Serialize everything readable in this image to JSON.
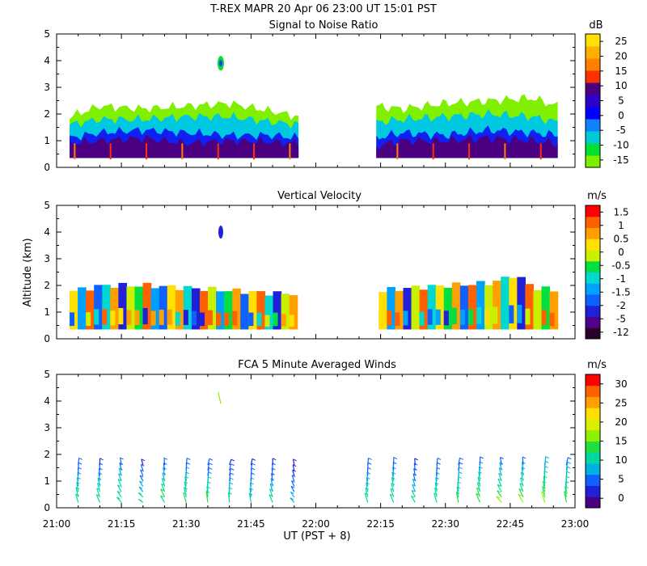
{
  "header": {
    "title": "T-REX   MAPR 20 Apr 06   23:00 UT   15:01   PST"
  },
  "x_axis": {
    "label": "UT  (PST + 8)",
    "tick_labels": [
      "21:00",
      "21:15",
      "21:30",
      "21:45",
      "22:00",
      "22:15",
      "22:30",
      "22:45",
      "23:00"
    ],
    "range_minutes": [
      0,
      120
    ]
  },
  "y_axis": {
    "label": "Altitude (km)",
    "tick_labels": [
      "0",
      "1",
      "2",
      "3",
      "4",
      "5"
    ],
    "range_km": [
      0,
      5
    ]
  },
  "colors": {
    "scale": [
      "#7cf000",
      "#00e030",
      "#00c8d8",
      "#1080ff",
      "#0000ff",
      "#2c00c8",
      "#4a0080",
      "#ff3000",
      "#ff8000",
      "#ffb000",
      "#ffe000"
    ],
    "velocity_scale": [
      "#2a002a",
      "#50008a",
      "#2020d8",
      "#1060ff",
      "#00a0ff",
      "#00d8d0",
      "#00e040",
      "#c8f000",
      "#ffe000",
      "#ffa000",
      "#ff6000",
      "#ff0000"
    ],
    "wind_scale": [
      "#4a0080",
      "#2020d8",
      "#1060ff",
      "#00b0e0",
      "#00d8a0",
      "#20e040",
      "#90f000",
      "#d8f000",
      "#ffe000",
      "#ffa000",
      "#ff6000",
      "#ff0000"
    ]
  },
  "chart_data": [
    {
      "type": "heatmap",
      "title": "Signal to Noise Ratio",
      "unit": "dB",
      "colorbar_ticks": [
        "25",
        "20",
        "15",
        "10",
        "5",
        "0",
        "-5",
        "-10",
        "-15"
      ],
      "data_gap_minutes": [
        56,
        74
      ],
      "layers_top_km": [
        {
          "level": "-15 dB",
          "x": [
            3,
            10,
            20,
            30,
            40,
            50,
            56,
            74,
            80,
            90,
            100,
            110,
            116
          ],
          "top": [
            1.9,
            2.3,
            2.2,
            2.3,
            2.4,
            2.1,
            1.9,
            2.3,
            2.2,
            2.4,
            2.5,
            2.6,
            2.3
          ]
        },
        {
          "level": "-5 dB",
          "x": [
            3,
            10,
            20,
            30,
            40,
            50,
            56,
            74,
            80,
            90,
            100,
            110,
            116
          ],
          "top": [
            1.6,
            1.8,
            1.8,
            1.9,
            1.9,
            1.7,
            1.6,
            1.7,
            1.8,
            1.9,
            2.0,
            1.9,
            1.7
          ]
        },
        {
          "level": "5 dB",
          "x": [
            3,
            10,
            20,
            30,
            40,
            50,
            56,
            74,
            80,
            90,
            100,
            110,
            116
          ],
          "top": [
            1.1,
            1.3,
            1.4,
            1.3,
            1.2,
            1.2,
            1.1,
            1.1,
            1.3,
            1.2,
            1.4,
            1.3,
            1.2
          ]
        },
        {
          "level": "10 dB",
          "x": [
            3,
            10,
            20,
            30,
            40,
            50,
            56,
            74,
            80,
            90,
            100,
            110,
            116
          ],
          "top": [
            0.9,
            1.0,
            1.1,
            0.9,
            1.0,
            0.95,
            0.9,
            0.8,
            1.0,
            1.0,
            1.1,
            1.0,
            0.9
          ]
        }
      ],
      "bottom_km": 0.35,
      "isolated_feature": {
        "x_min": 38,
        "alt_km": 3.9,
        "value_db": 0
      }
    },
    {
      "type": "heatmap",
      "title": "Vertical Velocity",
      "unit": "m/s",
      "colorbar_ticks": [
        "1.5",
        "1",
        "0.5",
        "0",
        "-0.5",
        "-1",
        "-1.5",
        "-2",
        "-5",
        "-12"
      ],
      "data_gap_minutes": [
        56,
        74
      ],
      "echo_top_km": {
        "x": [
          3,
          10,
          20,
          30,
          40,
          50,
          56,
          74,
          80,
          90,
          100,
          105,
          110,
          116
        ],
        "top": [
          1.8,
          2.0,
          2.0,
          1.9,
          1.8,
          1.7,
          1.7,
          1.8,
          1.9,
          2.0,
          2.1,
          2.4,
          1.9,
          1.8
        ]
      },
      "bottom_km": 0.35,
      "column_values_ms": [
        0.5,
        -1.5,
        1.5,
        -2,
        -1,
        1,
        -5,
        0,
        -0.5,
        1.5,
        -1.5,
        -2,
        0.5,
        1,
        -1,
        -5,
        1.5,
        0,
        -1.5,
        -0.5,
        1,
        -2,
        0.5,
        1.5,
        -1,
        -5,
        0,
        1,
        -1.5,
        0.5,
        -2,
        1.5,
        -0.5,
        1,
        -1,
        0,
        1.5,
        -2,
        0.5,
        -1.5,
        1,
        -5,
        0,
        1.5,
        -1,
        0.5,
        -0.5,
        1,
        -2,
        1.5,
        -1.5,
        0,
        1,
        -1,
        0.5,
        -5,
        1.5,
        0,
        -0.5,
        1
      ],
      "isolated_feature": {
        "x_min": 38,
        "alt_km": 4.0,
        "value_ms": -5
      }
    },
    {
      "type": "scatter",
      "title": "FCA 5 Minute Averaged Winds",
      "unit": "m/s",
      "colorbar_ticks": [
        "30",
        "25",
        "20",
        "15",
        "10",
        "5",
        "0"
      ],
      "profile_times_minutes": [
        5,
        10,
        15,
        20,
        25,
        30,
        35,
        40,
        45,
        50,
        55,
        72,
        78,
        83,
        88,
        93,
        98,
        103,
        108,
        113,
        118
      ],
      "altitudes_km": [
        0.2,
        0.4,
        0.6,
        0.8,
        1.0,
        1.2,
        1.4,
        1.6
      ],
      "speeds_ms": [
        [
          10,
          12,
          11,
          9,
          8,
          7,
          6,
          5
        ],
        [
          11,
          12,
          10,
          9,
          8,
          6,
          5,
          4
        ],
        [
          12,
          11,
          11,
          10,
          9,
          8,
          7,
          6
        ],
        [
          10,
          11,
          9,
          8,
          7,
          6,
          5,
          4
        ],
        [
          12,
          13,
          11,
          10,
          9,
          8,
          6,
          5
        ],
        [
          13,
          12,
          12,
          11,
          9,
          8,
          6,
          5
        ],
        [
          14,
          12,
          11,
          10,
          9,
          7,
          6,
          5
        ],
        [
          11,
          10,
          9,
          8,
          7,
          6,
          5,
          4
        ],
        [
          10,
          9,
          9,
          8,
          7,
          6,
          5,
          4
        ],
        [
          11,
          10,
          9,
          8,
          7,
          6,
          5,
          4
        ],
        [
          9,
          8,
          7,
          6,
          5,
          4,
          3,
          3
        ],
        [
          12,
          11,
          10,
          9,
          8,
          7,
          6,
          5
        ],
        [
          12,
          11,
          10,
          10,
          9,
          8,
          7,
          6
        ],
        [
          11,
          10,
          9,
          8,
          7,
          6,
          5,
          4
        ],
        [
          12,
          11,
          10,
          9,
          8,
          7,
          6,
          5
        ],
        [
          13,
          12,
          11,
          10,
          9,
          8,
          7,
          6
        ],
        [
          14,
          13,
          12,
          11,
          10,
          9,
          8,
          7
        ],
        [
          15,
          13,
          12,
          11,
          10,
          9,
          8,
          7
        ],
        [
          16,
          14,
          12,
          11,
          10,
          9,
          8,
          7
        ],
        [
          15,
          14,
          13,
          12,
          11,
          10,
          9,
          8
        ],
        [
          14,
          13,
          12,
          11,
          10,
          9,
          8,
          7
        ]
      ],
      "directions_deg": [
        330,
        320,
        300,
        290,
        310,
        330,
        345,
        350,
        340,
        320,
        300,
        330,
        320,
        310,
        330,
        340,
        320,
        300,
        310,
        330,
        340
      ],
      "isolated_barb": {
        "x_min": 38,
        "alt_km": 3.9,
        "speed_ms": 15
      }
    }
  ]
}
